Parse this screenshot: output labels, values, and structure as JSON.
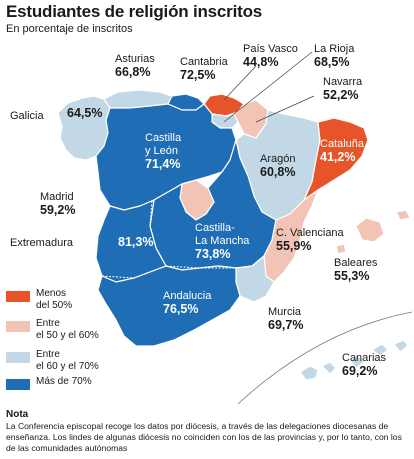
{
  "title": "Estudiantes de religión inscritos",
  "subtitle": "En porcentaje de inscritos",
  "colors": {
    "menos_50": "#e8542a",
    "entre_50_60": "#f2c4b6",
    "entre_60_70": "#c3d8e6",
    "mas_70": "#1f6db4"
  },
  "regions": {
    "asturias": {
      "name": "Asturias",
      "value": "66,8%"
    },
    "cantabria": {
      "name": "Cantabria",
      "value": "72,5%"
    },
    "pais_vasco": {
      "name": "País Vasco",
      "value": "44,8%"
    },
    "la_rioja": {
      "name": "La Rioja",
      "value": "68,5%"
    },
    "navarra": {
      "name": "Navarra",
      "value": "52,2%"
    },
    "galicia": {
      "name": "Galicia",
      "value": "64,5%"
    },
    "castilla_leon": {
      "name1": "Castilla",
      "name2": "y León",
      "value": "71,4%"
    },
    "aragon": {
      "name": "Aragón",
      "value": "60,8%"
    },
    "cataluna": {
      "name": "Cataluña",
      "value": "41,2%"
    },
    "madrid": {
      "name": "Madrid",
      "value": "59,2%"
    },
    "extremadura": {
      "name": "Extremadura",
      "value": "81,3%"
    },
    "castilla_mancha": {
      "name1": "Castilla-",
      "name2": "La Mancha",
      "value": "73,8%"
    },
    "valenciana": {
      "name": "C. Valenciana",
      "value": "55,9%"
    },
    "baleares": {
      "name": "Baleares",
      "value": "55,3%"
    },
    "andalucia": {
      "name": "Andalucia",
      "value": "76,5%"
    },
    "murcia": {
      "name": "Murcia",
      "value": "69,7%"
    },
    "canarias": {
      "name": "Canarias",
      "value": "69,2%"
    }
  },
  "legend": [
    {
      "line1": "Menos",
      "line2": "del 50%"
    },
    {
      "line1": "Entre",
      "line2": "el 50 y el 60%"
    },
    {
      "line1": "Entre",
      "line2": "el 60 y el 70%"
    },
    {
      "line1": "Más de 70%",
      "line2": ""
    }
  ],
  "note": {
    "heading": "Nota",
    "text": "La Conferencia episcopal recoge los datos por diócesis, a través de las delegaciones diocesanas de enseñanza. Los lindes de algunas diócesis no coinciden con los de las provincias y, por lo tanto, con los de las comunidades autónomas"
  }
}
